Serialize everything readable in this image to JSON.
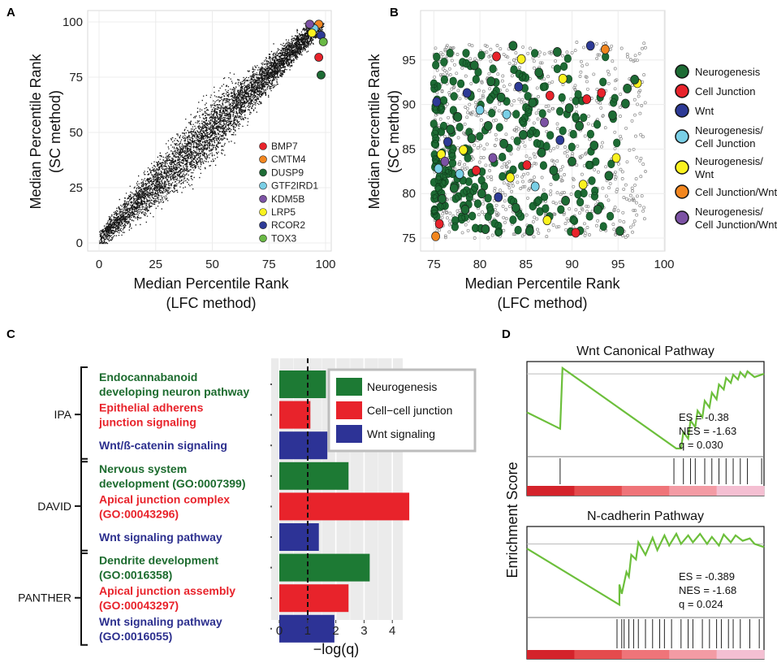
{
  "panel_labels": [
    "A",
    "B",
    "C",
    "D"
  ],
  "colors": {
    "neuro": "#1d6b34",
    "red": "#e8232b",
    "blue": "#2d3a96",
    "cyan": "#79cfe6",
    "yellow": "#fbf21f",
    "orange": "#f2861f",
    "purple": "#7c52a4",
    "lime": "#6ab945",
    "green_text": "#1c6b2e",
    "red_text": "#e8232b",
    "blue_text": "#2c2f8e",
    "gsea_line": "#6cbf3b"
  },
  "chart_data": [
    {
      "id": "A",
      "type": "scatter",
      "title": "",
      "xlabel": [
        "Median Percentile Rank",
        "(LFC method)"
      ],
      "ylabel": [
        "Median Percentile Rank",
        "(SC method)"
      ],
      "xlim": [
        0,
        100
      ],
      "ylim": [
        0,
        100
      ],
      "xticks": [
        0,
        25,
        50,
        75,
        100
      ],
      "yticks": [
        0,
        25,
        50,
        75,
        100
      ],
      "background_points": "approx. 12000 genes clustered near the diagonal",
      "legend": [
        {
          "label": "BMP7",
          "color": "#e8232b"
        },
        {
          "label": "CMTM4",
          "color": "#f2861f"
        },
        {
          "label": "DUSP9",
          "color": "#1d6b34"
        },
        {
          "label": "GTF2IRD1",
          "color": "#79cfe6"
        },
        {
          "label": "KDM5B",
          "color": "#7c52a4"
        },
        {
          "label": "LRP5",
          "color": "#fbf21f"
        },
        {
          "label": "RCOR2",
          "color": "#2d3a96"
        },
        {
          "label": "TOX3",
          "color": "#6ab945"
        }
      ],
      "highlight_points": [
        {
          "gene": "BMP7",
          "x": 97,
          "y": 84
        },
        {
          "gene": "CMTM4",
          "x": 97,
          "y": 99
        },
        {
          "gene": "DUSP9",
          "x": 98,
          "y": 76
        },
        {
          "gene": "GTF2IRD1",
          "x": 95,
          "y": 97
        },
        {
          "gene": "KDM5B",
          "x": 93,
          "y": 99
        },
        {
          "gene": "LRP5",
          "x": 94,
          "y": 95
        },
        {
          "gene": "RCOR2",
          "x": 98,
          "y": 94
        },
        {
          "gene": "TOX3",
          "x": 99,
          "y": 91
        }
      ]
    },
    {
      "id": "B",
      "type": "scatter",
      "title": "",
      "xlabel": [
        "Median Percentile Rank",
        "(LFC method)"
      ],
      "ylabel": [
        "Median Percentile Rank",
        "(SC method)"
      ],
      "xlim": [
        74,
        100
      ],
      "ylim": [
        74,
        99
      ],
      "xticks": [
        75,
        80,
        85,
        90,
        95,
        100
      ],
      "yticks": [
        75,
        80,
        85,
        90,
        95
      ],
      "legend": [
        {
          "label": [
            "Neurogenesis"
          ],
          "color": "#1d6b34"
        },
        {
          "label": [
            "Cell Junction"
          ],
          "color": "#e8232b"
        },
        {
          "label": [
            "Wnt"
          ],
          "color": "#2d3a96"
        },
        {
          "label": [
            "Neurogenesis/",
            "Cell Junction"
          ],
          "color": "#79cfe6"
        },
        {
          "label": [
            "Neurogenesis/",
            "Wnt"
          ],
          "color": "#fbf21f"
        },
        {
          "label": [
            "Cell Junction/Wnt"
          ],
          "color": "#f2861f"
        },
        {
          "label": [
            "Neurogenesis/",
            "Cell Junction/Wnt"
          ],
          "color": "#7c52a4"
        }
      ],
      "highlight_points": [
        {
          "x": 75.2,
          "y": 75.2,
          "c": "orange"
        },
        {
          "x": 75.6,
          "y": 76.6,
          "c": "red"
        },
        {
          "x": 75.3,
          "y": 90.3,
          "c": "blue"
        },
        {
          "x": 75.9,
          "y": 79.4,
          "c": "neuro"
        },
        {
          "x": 75.5,
          "y": 82.8,
          "c": "cyan"
        },
        {
          "x": 75.8,
          "y": 84.4,
          "c": "yellow"
        },
        {
          "x": 76.2,
          "y": 83.6,
          "c": "purple"
        },
        {
          "x": 76.8,
          "y": 87.2,
          "c": "neuro"
        },
        {
          "x": 76.5,
          "y": 85.8,
          "c": "blue"
        },
        {
          "x": 77.2,
          "y": 80.6,
          "c": "neuro"
        },
        {
          "x": 77.6,
          "y": 88.6,
          "c": "neuro"
        },
        {
          "x": 77.8,
          "y": 82.2,
          "c": "cyan"
        },
        {
          "x": 78.2,
          "y": 84.9,
          "c": "yellow"
        },
        {
          "x": 78.6,
          "y": 91.3,
          "c": "blue"
        },
        {
          "x": 78.4,
          "y": 78.2,
          "c": "neuro"
        },
        {
          "x": 79.1,
          "y": 86.2,
          "c": "neuro"
        },
        {
          "x": 79.4,
          "y": 94.4,
          "c": "neuro"
        },
        {
          "x": 79.6,
          "y": 82.6,
          "c": "red"
        },
        {
          "x": 80.0,
          "y": 89.4,
          "c": "cyan"
        },
        {
          "x": 80.2,
          "y": 80.0,
          "c": "neuro"
        },
        {
          "x": 80.6,
          "y": 76.0,
          "c": "neuro"
        },
        {
          "x": 80.9,
          "y": 87.6,
          "c": "neuro"
        },
        {
          "x": 81.2,
          "y": 92.6,
          "c": "neuro"
        },
        {
          "x": 81.4,
          "y": 84.0,
          "c": "purple"
        },
        {
          "x": 81.8,
          "y": 95.4,
          "c": "red"
        },
        {
          "x": 82.0,
          "y": 79.6,
          "c": "blue"
        },
        {
          "x": 82.3,
          "y": 90.8,
          "c": "neuro"
        },
        {
          "x": 82.6,
          "y": 85.6,
          "c": "neuro"
        },
        {
          "x": 82.9,
          "y": 88.9,
          "c": "cyan"
        },
        {
          "x": 83.3,
          "y": 81.8,
          "c": "yellow"
        },
        {
          "x": 83.6,
          "y": 96.6,
          "c": "neuro"
        },
        {
          "x": 83.9,
          "y": 78.4,
          "c": "neuro"
        },
        {
          "x": 84.2,
          "y": 92.0,
          "c": "blue"
        },
        {
          "x": 84.5,
          "y": 95.1,
          "c": "yellow"
        },
        {
          "x": 84.7,
          "y": 86.6,
          "c": "neuro"
        },
        {
          "x": 85.1,
          "y": 83.2,
          "c": "red"
        },
        {
          "x": 85.4,
          "y": 75.8,
          "c": "neuro"
        },
        {
          "x": 85.7,
          "y": 90.2,
          "c": "neuro"
        },
        {
          "x": 86.0,
          "y": 80.8,
          "c": "cyan"
        },
        {
          "x": 86.4,
          "y": 93.6,
          "c": "neuro"
        },
        {
          "x": 86.7,
          "y": 84.6,
          "c": "neuro"
        },
        {
          "x": 87.0,
          "y": 88.0,
          "c": "purple"
        },
        {
          "x": 87.3,
          "y": 77.0,
          "c": "yellow"
        },
        {
          "x": 87.6,
          "y": 91.0,
          "c": "red"
        },
        {
          "x": 88.0,
          "y": 82.6,
          "c": "neuro"
        },
        {
          "x": 88.4,
          "y": 95.9,
          "c": "neuro"
        },
        {
          "x": 88.7,
          "y": 86.0,
          "c": "blue"
        },
        {
          "x": 89.0,
          "y": 92.9,
          "c": "yellow"
        },
        {
          "x": 89.3,
          "y": 79.2,
          "c": "neuro"
        },
        {
          "x": 89.7,
          "y": 89.6,
          "c": "neuro"
        },
        {
          "x": 90.0,
          "y": 83.6,
          "c": "neuro"
        },
        {
          "x": 90.4,
          "y": 75.6,
          "c": "red"
        },
        {
          "x": 90.8,
          "y": 87.6,
          "c": "neuro"
        },
        {
          "x": 91.2,
          "y": 81.0,
          "c": "yellow"
        },
        {
          "x": 91.6,
          "y": 90.6,
          "c": "red"
        },
        {
          "x": 92.0,
          "y": 96.6,
          "c": "blue"
        },
        {
          "x": 92.4,
          "y": 85.4,
          "c": "neuro"
        },
        {
          "x": 92.8,
          "y": 78.2,
          "c": "neuro"
        },
        {
          "x": 93.2,
          "y": 91.3,
          "c": "red"
        },
        {
          "x": 93.6,
          "y": 96.2,
          "c": "orange"
        },
        {
          "x": 94.0,
          "y": 82.0,
          "c": "neuro"
        },
        {
          "x": 94.4,
          "y": 88.8,
          "c": "neuro"
        },
        {
          "x": 94.8,
          "y": 84.0,
          "c": "yellow"
        },
        {
          "x": 95.2,
          "y": 75.8,
          "c": "neuro"
        },
        {
          "x": 96.0,
          "y": 91.8,
          "c": "neuro"
        },
        {
          "x": 97.1,
          "y": 92.4,
          "c": "yellow"
        },
        {
          "x": 96.8,
          "y": 92.8,
          "c": "neuro"
        },
        {
          "x": 95.8,
          "y": 90.1,
          "c": "neuro"
        }
      ]
    },
    {
      "id": "C",
      "type": "bar",
      "orientation": "horizontal",
      "xlabel": "−log(q)",
      "xlim": [
        -0.3,
        4.5
      ],
      "xticks": [
        0,
        1,
        2,
        3,
        4
      ],
      "threshold": 1.0,
      "legend": [
        {
          "label": "Neurogenesis",
          "color": "#1d7a34"
        },
        {
          "label": "Cell−cell junction",
          "color": "#e8232b"
        },
        {
          "label": "Wnt signaling",
          "color": "#2d3396"
        }
      ],
      "groups": [
        {
          "name": "IPA",
          "items": [
            0,
            1,
            2
          ]
        },
        {
          "name": "DAVID",
          "items": [
            3,
            4,
            5
          ]
        },
        {
          "name": "PANTHER",
          "items": [
            6,
            7,
            8
          ]
        }
      ],
      "bars": [
        {
          "label": [
            "Endocannabanoid",
            "developing neuron pathway"
          ],
          "value": 1.65,
          "color": "#1d7a34",
          "category": "Neurogenesis"
        },
        {
          "label": [
            "Epithelial adherens",
            "junction signaling"
          ],
          "value": 1.1,
          "color": "#e8232b",
          "category": "Cell−cell junction"
        },
        {
          "label": [
            "Wnt/ß-catenin signaling"
          ],
          "value": 1.7,
          "color": "#2d3396",
          "category": "Wnt signaling"
        },
        {
          "label": [
            "Nervous system",
            "development (GO:0007399)"
          ],
          "value": 2.45,
          "color": "#1d7a34",
          "category": "Neurogenesis"
        },
        {
          "label": [
            "Apical junction complex",
            "(GO:00043296)"
          ],
          "value": 4.6,
          "color": "#e8232b",
          "category": "Cell−cell junction"
        },
        {
          "label": [
            "Wnt signaling pathway"
          ],
          "value": 1.4,
          "color": "#2d3396",
          "category": "Wnt signaling"
        },
        {
          "label": [
            "Dendrite development",
            "(GO:0016358)"
          ],
          "value": 3.2,
          "color": "#1d7a34",
          "category": "Neurogenesis"
        },
        {
          "label": [
            "Apical junction assembly",
            "(GO:00043297)"
          ],
          "value": 2.45,
          "color": "#e8232b",
          "category": "Cell−cell junction"
        },
        {
          "label": [
            "Wnt signaling pathway",
            "(GO:0016055)"
          ],
          "value": 1.95,
          "color": "#2d3396",
          "category": "Wnt signaling"
        }
      ]
    },
    {
      "id": "D",
      "type": "line",
      "ylabel": "Enrichment Score",
      "heat_colors": [
        "#d4232b",
        "#e44b4d",
        "#ef7479",
        "#f39ba4",
        "#f4bfd2"
      ],
      "subplots": [
        {
          "title": "Wnt Canonical Pathway",
          "stats": [
            "ES = -0.38",
            "NES = -1.63",
            "q = 0.030"
          ],
          "x": [
            0,
            0.14,
            0.15,
            0.63,
            0.65,
            0.66,
            0.68,
            0.69,
            0.71,
            0.72,
            0.74,
            0.75,
            0.77,
            0.78,
            0.8,
            0.81,
            0.83,
            0.84,
            0.86,
            0.87,
            0.89,
            0.9,
            0.92,
            0.93,
            0.96,
            1.0
          ],
          "es": [
            0.46,
            0.26,
            1.0,
            0.02,
            0.02,
            0.22,
            0.14,
            0.36,
            0.28,
            0.48,
            0.4,
            0.6,
            0.52,
            0.7,
            0.62,
            0.8,
            0.74,
            0.88,
            0.82,
            0.92,
            0.86,
            0.95,
            0.89,
            0.96,
            0.89,
            0.93
          ],
          "baseline": 0.93,
          "hits": [
            0.14,
            0.62,
            0.66,
            0.69,
            0.71,
            0.75,
            0.78,
            0.81,
            0.84,
            0.87,
            0.9,
            0.93,
            0.99
          ]
        },
        {
          "title": "N-cadherin Pathway",
          "stats": [
            "ES = -0.389",
            "NES = -1.68",
            "q = 0.024"
          ],
          "x": [
            0,
            0.39,
            0.39,
            0.4,
            0.42,
            0.43,
            0.44,
            0.46,
            0.47,
            0.5,
            0.53,
            0.55,
            0.58,
            0.6,
            0.63,
            0.65,
            0.68,
            0.7,
            0.73,
            0.76,
            0.78,
            0.81,
            0.83,
            0.86,
            0.88,
            0.91,
            0.94,
            0.96,
            1.0
          ],
          "es": [
            0.8,
            0.08,
            0.34,
            0.22,
            0.5,
            0.44,
            0.72,
            0.66,
            0.88,
            0.72,
            0.94,
            0.78,
            0.97,
            0.84,
            0.99,
            0.86,
            0.97,
            0.88,
            0.99,
            0.86,
            0.95,
            0.84,
            0.98,
            0.88,
            0.97,
            0.9,
            0.93,
            0.86,
            0.82
          ],
          "baseline": 0.86,
          "hits": [
            0.38,
            0.4,
            0.41,
            0.43,
            0.45,
            0.47,
            0.5,
            0.53,
            0.56,
            0.58,
            0.61,
            0.65,
            0.68,
            0.7,
            0.74,
            0.77,
            0.8,
            0.82,
            0.85,
            0.87,
            0.9,
            0.94,
            0.98
          ]
        }
      ]
    }
  ]
}
